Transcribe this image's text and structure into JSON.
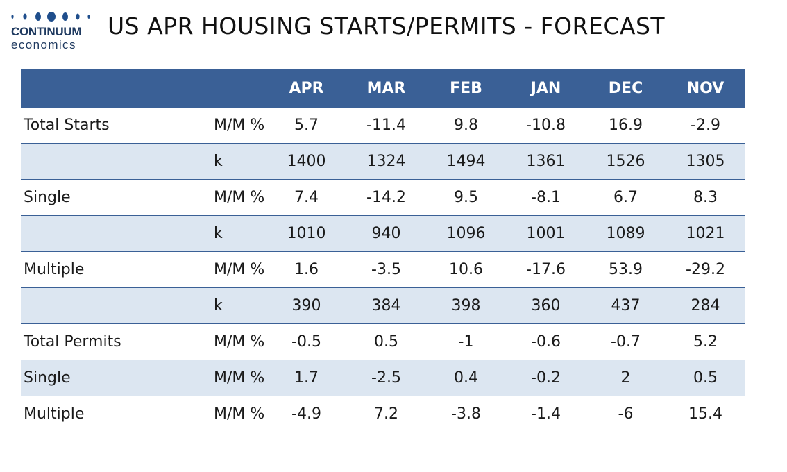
{
  "brand": {
    "name": "CONTINUUM",
    "sub": "economics",
    "dot_color": "#1f4e8c"
  },
  "title": "US APR HOUSING STARTS/PERMITS - FORECAST",
  "table": {
    "header_color": "#3a6096",
    "shade_color": "#dce6f1",
    "columns": [
      "APR",
      "MAR",
      "FEB",
      "JAN",
      "DEC",
      "NOV"
    ],
    "rows": [
      {
        "label": "Total Starts",
        "unit": "M/M %",
        "values": [
          "5.7",
          "-11.4",
          "9.8",
          "-10.8",
          "16.9",
          "-2.9"
        ]
      },
      {
        "label": "",
        "unit": "k",
        "values": [
          "1400",
          "1324",
          "1494",
          "1361",
          "1526",
          "1305"
        ]
      },
      {
        "label": "Single",
        "unit": "M/M %",
        "values": [
          "7.4",
          "-14.2",
          "9.5",
          "-8.1",
          "6.7",
          "8.3"
        ]
      },
      {
        "label": "",
        "unit": "k",
        "values": [
          "1010",
          "940",
          "1096",
          "1001",
          "1089",
          "1021"
        ]
      },
      {
        "label": "Multiple",
        "unit": "M/M %",
        "values": [
          "1.6",
          "-3.5",
          "10.6",
          "-17.6",
          "53.9",
          "-29.2"
        ]
      },
      {
        "label": "",
        "unit": "k",
        "values": [
          "390",
          "384",
          "398",
          "360",
          "437",
          "284"
        ]
      },
      {
        "label": "Total Permits",
        "unit": "M/M %",
        "values": [
          "-0.5",
          "0.5",
          "-1",
          "-0.6",
          "-0.7",
          "5.2"
        ]
      },
      {
        "label": "Single",
        "unit": "M/M %",
        "values": [
          "1.7",
          "-2.5",
          "0.4",
          "-0.2",
          "2",
          "0.5"
        ]
      },
      {
        "label": "Multiple",
        "unit": "M/M %",
        "values": [
          "-4.9",
          "7.2",
          "-3.8",
          "-1.4",
          "-6",
          "15.4"
        ]
      }
    ]
  }
}
